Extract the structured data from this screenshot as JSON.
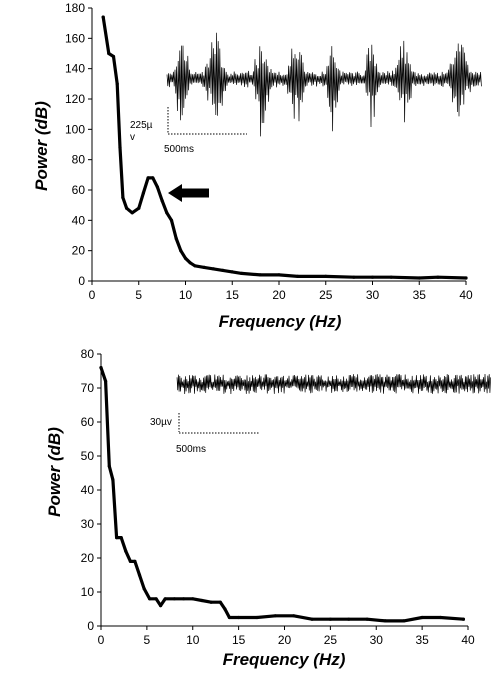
{
  "chart_data": [
    {
      "type": "line",
      "xlabel": "Frequency (Hz)",
      "ylabel": "Power (dB)",
      "xlim": [
        0,
        40
      ],
      "ylim": [
        0,
        180
      ],
      "xticks": [
        0,
        5,
        10,
        15,
        20,
        25,
        30,
        35,
        40
      ],
      "yticks": [
        0,
        20,
        40,
        60,
        80,
        100,
        120,
        140,
        160,
        180
      ],
      "grid": false,
      "series": [
        {
          "x": [
            1.2,
            1.8,
            2.3,
            2.7,
            3.0,
            3.3,
            3.7,
            4.3,
            5.0,
            5.5,
            6.0,
            6.5,
            7.0,
            7.5,
            8.0,
            8.5,
            9.0,
            9.5,
            10.0,
            10.5,
            11.0,
            12.0,
            13.0,
            14.0,
            15.0,
            16.0,
            18.0,
            20.0,
            22.0,
            25.0,
            28.0,
            30.0,
            32.0,
            35.0,
            37.0,
            40.0
          ],
          "y": [
            174,
            150,
            148,
            130,
            88,
            55,
            48,
            45,
            48,
            58,
            68,
            68,
            62,
            53,
            45,
            40,
            28,
            20,
            15,
            12,
            10,
            9,
            8,
            7,
            6,
            5,
            4,
            4,
            3,
            3,
            2.5,
            2.5,
            2.5,
            2,
            2.5,
            2
          ]
        }
      ],
      "annotations": [
        {
          "type": "arrow",
          "direction": "left",
          "points_to": {
            "x": 6.8,
            "y": 58
          }
        }
      ],
      "inset": {
        "trace": "high-amplitude EEG with periodic spike bursts",
        "scale_vertical": "225µ\nv",
        "scale_horizontal": "500ms"
      }
    },
    {
      "type": "line",
      "xlabel": "Frequency (Hz)",
      "ylabel": "Power (dB)",
      "xlim": [
        0,
        40
      ],
      "ylim": [
        0,
        80
      ],
      "xticks": [
        0,
        5,
        10,
        15,
        20,
        25,
        30,
        35,
        40
      ],
      "yticks": [
        0,
        10,
        20,
        30,
        40,
        50,
        60,
        70,
        80
      ],
      "grid": false,
      "series": [
        {
          "x": [
            0.0,
            0.5,
            0.9,
            1.3,
            1.7,
            2.2,
            2.7,
            3.2,
            3.7,
            4.2,
            4.7,
            5.3,
            6.0,
            6.5,
            7.0,
            8.0,
            9.0,
            10.0,
            11.0,
            12.0,
            13.0,
            13.5,
            14.0,
            15.0,
            17.0,
            19.0,
            21.0,
            23.0,
            25.0,
            27.0,
            29.0,
            31.0,
            33.0,
            35.0,
            37.0,
            39.5
          ],
          "y": [
            76,
            72,
            47,
            43,
            26,
            26,
            22,
            19,
            19,
            15,
            11,
            8,
            8,
            6,
            8,
            8,
            8,
            8,
            7.5,
            7,
            7,
            5,
            2.5,
            2.5,
            2.5,
            3,
            3,
            2,
            2,
            2,
            2,
            1.5,
            1.5,
            2.5,
            2.5,
            2
          ]
        }
      ],
      "inset": {
        "trace": "low-amplitude background EEG",
        "scale_vertical": "30µv",
        "scale_horizontal": "500ms"
      }
    }
  ]
}
